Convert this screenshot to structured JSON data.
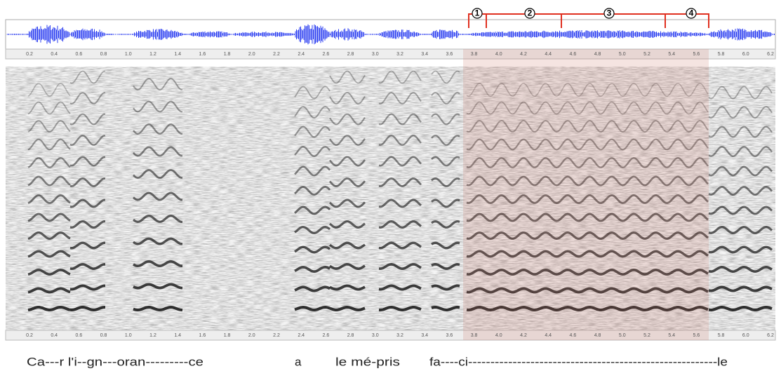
{
  "markers": [
    "1",
    "2",
    "3",
    "4"
  ],
  "time_axis": {
    "ticks": [
      "0.2",
      "0.4",
      "0.6",
      "0.8",
      "1.0",
      "1.2",
      "1.4",
      "1.6",
      "1.8",
      "2.0",
      "2.2",
      "2.4",
      "2.6",
      "2.8",
      "3.0",
      "3.2",
      "3.4",
      "3.6",
      "3.8",
      "4.0",
      "4.2",
      "4.4",
      "4.6",
      "4.8",
      "5.0",
      "5.2",
      "5.4",
      "5.6",
      "5.8",
      "6.0",
      "6.2"
    ]
  },
  "lyrics": [
    "Ca---r l'i--gn---oran---------ce",
    "a",
    "le mé-pris",
    "fa----ci--------------------------------------------------------le"
  ]
}
